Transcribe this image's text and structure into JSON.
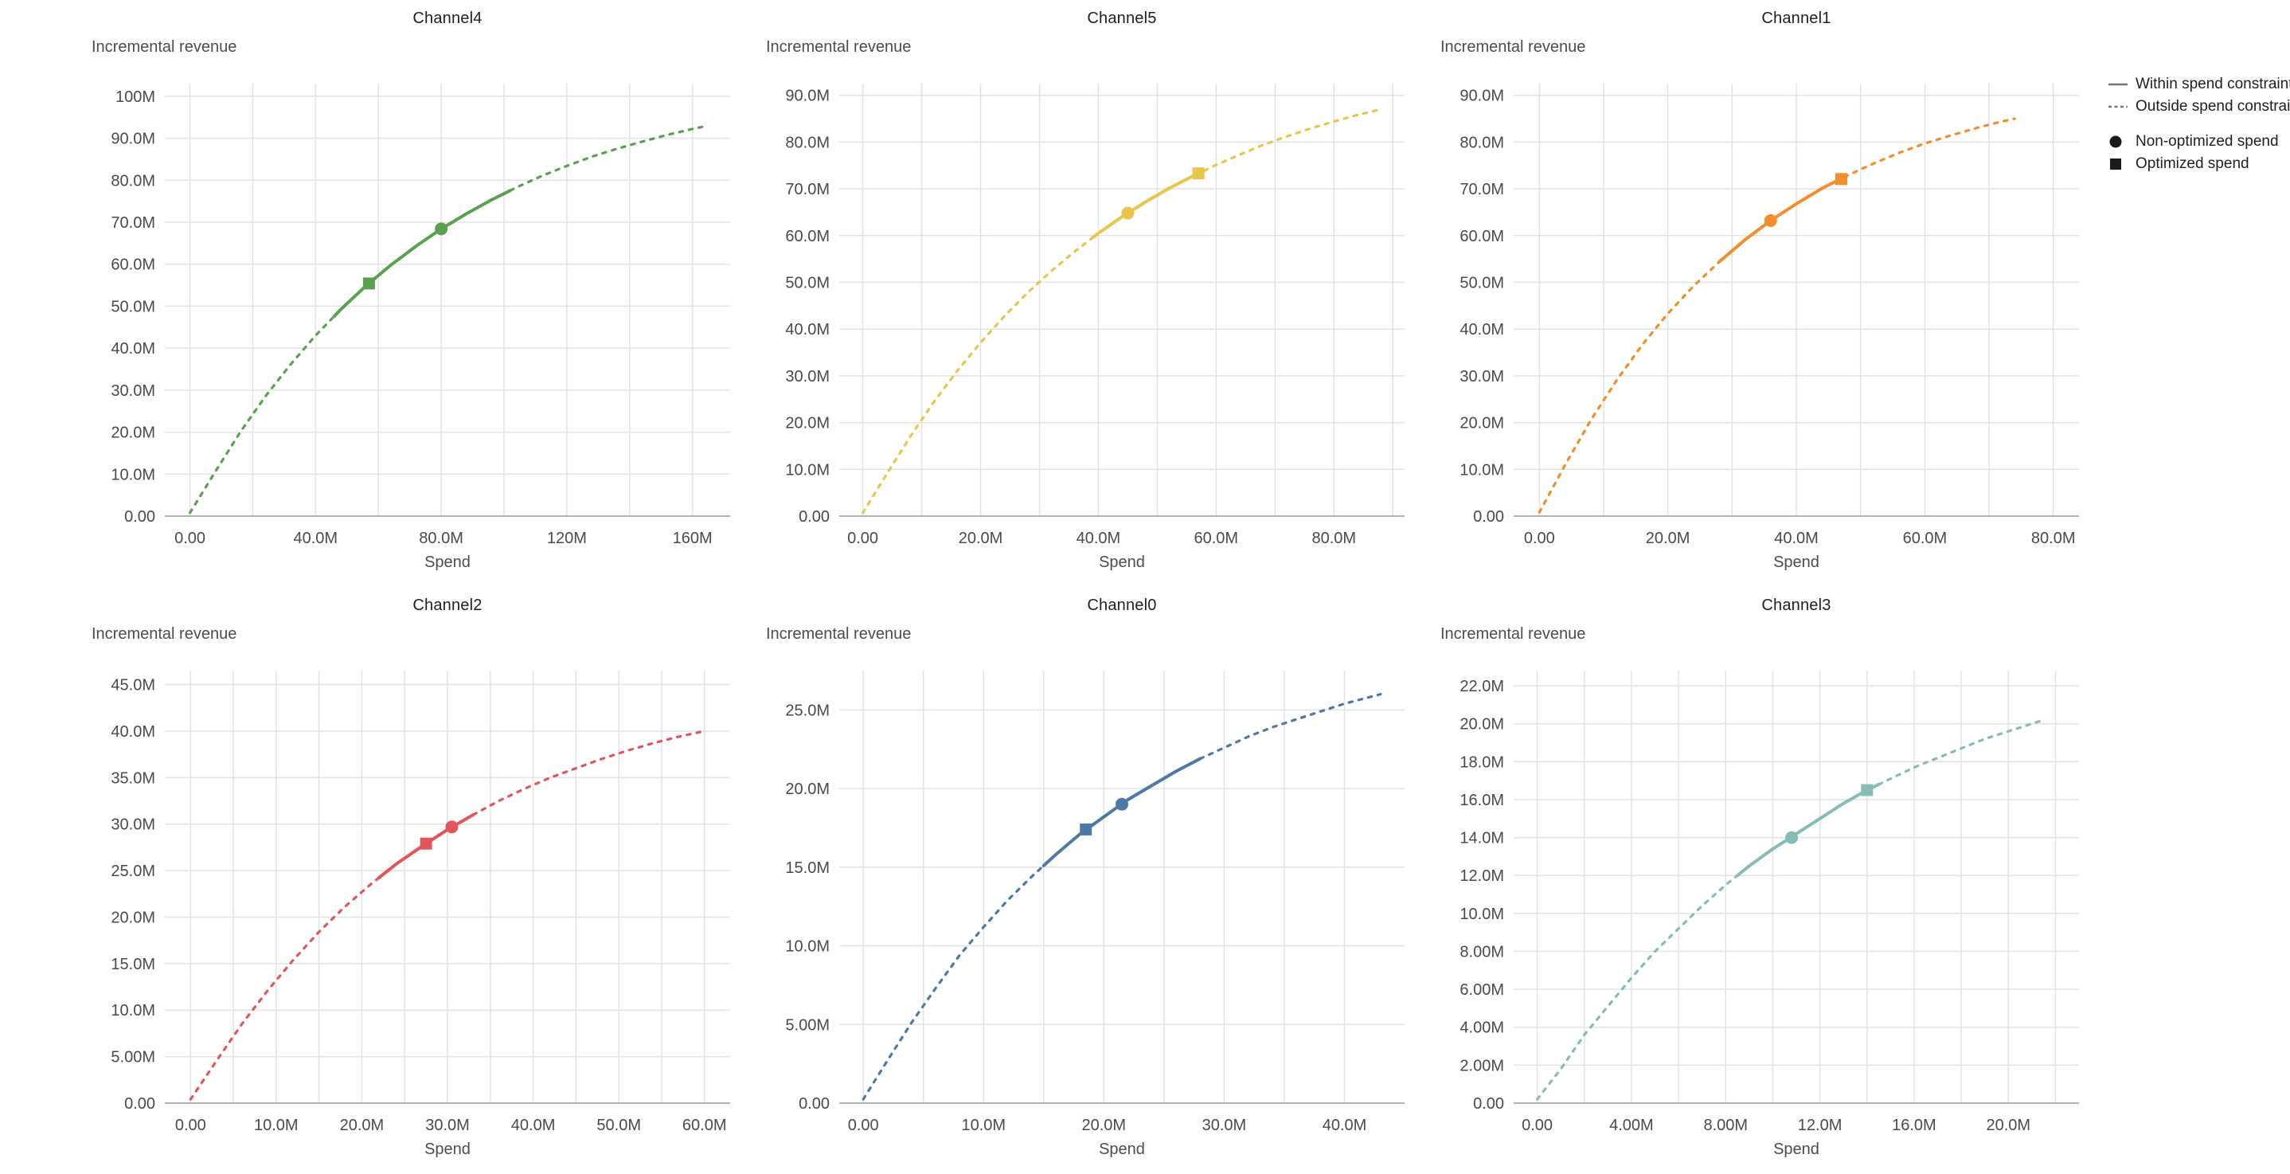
{
  "legend": {
    "items": [
      {
        "symbol": "solid-line",
        "label": "Within spend constraint"
      },
      {
        "symbol": "dashed-line",
        "label": "Outside spend constraint"
      },
      {
        "symbol": "circle",
        "label": "Non-optimized spend"
      },
      {
        "symbol": "square",
        "label": "Optimized spend"
      }
    ],
    "line_color": "#757575",
    "marker_color": "#1a1a1a"
  },
  "style": {
    "grid_color": "#e3e3e3",
    "axis_line_color": "#9e9e9e"
  },
  "chart_data": [
    {
      "type": "line",
      "title": "Channel4",
      "y_title": "Incremental revenue",
      "x_title": "Spend",
      "color": "#59A14F",
      "xlim": [
        -8,
        172
      ],
      "ylim": [
        0,
        103
      ],
      "x_ticks": [
        {
          "v": 0,
          "label": "0.00"
        },
        {
          "v": 40,
          "label": "40.0M"
        },
        {
          "v": 80,
          "label": "80.0M"
        },
        {
          "v": 120,
          "label": "120M"
        },
        {
          "v": 160,
          "label": "160M"
        }
      ],
      "x_minor": [
        20,
        60,
        100,
        140
      ],
      "y_ticks": [
        {
          "v": 0,
          "label": "0.00"
        },
        {
          "v": 10,
          "label": "10.0M"
        },
        {
          "v": 20,
          "label": "20.0M"
        },
        {
          "v": 30,
          "label": "30.0M"
        },
        {
          "v": 40,
          "label": "40.0M"
        },
        {
          "v": 50,
          "label": "50.0M"
        },
        {
          "v": 60,
          "label": "60.0M"
        },
        {
          "v": 70,
          "label": "70.0M"
        },
        {
          "v": 80,
          "label": "80.0M"
        },
        {
          "v": 90,
          "label": "90.0M"
        },
        {
          "v": 100,
          "label": "100M"
        }
      ],
      "solid_range": [
        46,
        102
      ],
      "curve": [
        [
          0,
          0.8
        ],
        [
          8,
          10.5
        ],
        [
          16,
          20.0
        ],
        [
          24,
          28.5
        ],
        [
          32,
          36.1
        ],
        [
          40,
          43.0
        ],
        [
          48,
          49.2
        ],
        [
          56,
          54.8
        ],
        [
          64,
          59.8
        ],
        [
          72,
          64.3
        ],
        [
          80,
          68.4
        ],
        [
          88,
          72.0
        ],
        [
          96,
          75.3
        ],
        [
          104,
          78.3
        ],
        [
          112,
          81.0
        ],
        [
          120,
          83.4
        ],
        [
          128,
          85.6
        ],
        [
          136,
          87.5
        ],
        [
          144,
          89.2
        ],
        [
          152,
          90.8
        ],
        [
          160,
          92.2
        ],
        [
          165,
          93.0
        ]
      ],
      "markers": {
        "non_optimized": [
          80,
          68.4
        ],
        "optimized": [
          57,
          55.4
        ]
      }
    },
    {
      "type": "line",
      "title": "Channel5",
      "y_title": "Incremental revenue",
      "x_title": "Spend",
      "color": "#E8C64A",
      "xlim": [
        -4,
        92
      ],
      "ylim": [
        0,
        92.5
      ],
      "x_ticks": [
        {
          "v": 0,
          "label": "0.00"
        },
        {
          "v": 20,
          "label": "20.0M"
        },
        {
          "v": 40,
          "label": "40.0M"
        },
        {
          "v": 60,
          "label": "60.0M"
        },
        {
          "v": 80,
          "label": "80.0M"
        }
      ],
      "x_minor": [
        10,
        30,
        50,
        70,
        90
      ],
      "y_ticks": [
        {
          "v": 0,
          "label": "0.00"
        },
        {
          "v": 10,
          "label": "10.0M"
        },
        {
          "v": 20,
          "label": "20.0M"
        },
        {
          "v": 30,
          "label": "30.0M"
        },
        {
          "v": 40,
          "label": "40.0M"
        },
        {
          "v": 50,
          "label": "50.0M"
        },
        {
          "v": 60,
          "label": "60.0M"
        },
        {
          "v": 70,
          "label": "70.0M"
        },
        {
          "v": 80,
          "label": "80.0M"
        },
        {
          "v": 90,
          "label": "90.0M"
        }
      ],
      "solid_range": [
        39,
        58
      ],
      "curve": [
        [
          0,
          0.7
        ],
        [
          4,
          8.9
        ],
        [
          8,
          16.9
        ],
        [
          12,
          24.3
        ],
        [
          16,
          31.0
        ],
        [
          20,
          37.1
        ],
        [
          24,
          42.7
        ],
        [
          28,
          47.8
        ],
        [
          32,
          52.4
        ],
        [
          36,
          56.6
        ],
        [
          40,
          60.5
        ],
        [
          44,
          64.0
        ],
        [
          48,
          67.2
        ],
        [
          52,
          70.1
        ],
        [
          56,
          72.7
        ],
        [
          60,
          75.1
        ],
        [
          64,
          77.3
        ],
        [
          68,
          79.4
        ],
        [
          72,
          81.2
        ],
        [
          76,
          82.9
        ],
        [
          80,
          84.4
        ],
        [
          84,
          85.8
        ],
        [
          88,
          87.0
        ]
      ],
      "markers": {
        "non_optimized": [
          45,
          64.8
        ],
        "optimized": [
          57,
          73.3
        ]
      }
    },
    {
      "type": "line",
      "title": "Channel1",
      "y_title": "Incremental revenue",
      "x_title": "Spend",
      "color": "#F28E2B",
      "xlim": [
        -4,
        84
      ],
      "ylim": [
        0,
        92.5
      ],
      "x_ticks": [
        {
          "v": 0,
          "label": "0.00"
        },
        {
          "v": 20,
          "label": "20.0M"
        },
        {
          "v": 40,
          "label": "40.0M"
        },
        {
          "v": 60,
          "label": "60.0M"
        },
        {
          "v": 80,
          "label": "80.0M"
        }
      ],
      "x_minor": [
        10,
        30,
        50,
        70
      ],
      "y_ticks": [
        {
          "v": 0,
          "label": "0.00"
        },
        {
          "v": 10,
          "label": "10.0M"
        },
        {
          "v": 20,
          "label": "20.0M"
        },
        {
          "v": 30,
          "label": "30.0M"
        },
        {
          "v": 40,
          "label": "40.0M"
        },
        {
          "v": 50,
          "label": "50.0M"
        },
        {
          "v": 60,
          "label": "60.0M"
        },
        {
          "v": 70,
          "label": "70.0M"
        },
        {
          "v": 80,
          "label": "80.0M"
        },
        {
          "v": 90,
          "label": "90.0M"
        }
      ],
      "solid_range": [
        28,
        47.5
      ],
      "curve": [
        [
          0,
          0.8
        ],
        [
          4,
          10.9
        ],
        [
          8,
          20.5
        ],
        [
          12,
          29.0
        ],
        [
          16,
          36.6
        ],
        [
          20,
          43.3
        ],
        [
          24,
          49.2
        ],
        [
          28,
          54.4
        ],
        [
          32,
          59.1
        ],
        [
          36,
          63.2
        ],
        [
          40,
          66.8
        ],
        [
          44,
          70.1
        ],
        [
          48,
          72.9
        ],
        [
          52,
          75.4
        ],
        [
          56,
          77.7
        ],
        [
          60,
          79.7
        ],
        [
          64,
          81.4
        ],
        [
          68,
          83.0
        ],
        [
          72,
          84.4
        ],
        [
          74,
          85.0
        ]
      ],
      "markers": {
        "non_optimized": [
          36,
          63.2
        ],
        "optimized": [
          47,
          72.1
        ]
      }
    },
    {
      "type": "line",
      "title": "Channel2",
      "y_title": "Incremental revenue",
      "x_title": "Spend",
      "color": "#E15759",
      "xlim": [
        -3,
        63
      ],
      "ylim": [
        0,
        46.5
      ],
      "x_ticks": [
        {
          "v": 0,
          "label": "0.00"
        },
        {
          "v": 10,
          "label": "10.0M"
        },
        {
          "v": 20,
          "label": "20.0M"
        },
        {
          "v": 30,
          "label": "30.0M"
        },
        {
          "v": 40,
          "label": "40.0M"
        },
        {
          "v": 50,
          "label": "50.0M"
        },
        {
          "v": 60,
          "label": "60.0M"
        }
      ],
      "x_minor": [
        5,
        15,
        25,
        35,
        45,
        55
      ],
      "y_ticks": [
        {
          "v": 0,
          "label": "0.00"
        },
        {
          "v": 5,
          "label": "5.00M"
        },
        {
          "v": 10,
          "label": "10.0M"
        },
        {
          "v": 15,
          "label": "15.0M"
        },
        {
          "v": 20,
          "label": "20.0M"
        },
        {
          "v": 25,
          "label": "25.0M"
        },
        {
          "v": 30,
          "label": "30.0M"
        },
        {
          "v": 35,
          "label": "35.0M"
        },
        {
          "v": 40,
          "label": "40.0M"
        },
        {
          "v": 45,
          "label": "45.0M"
        }
      ],
      "solid_range": [
        22,
        33
      ],
      "curve": [
        [
          0,
          0.4
        ],
        [
          3,
          4.5
        ],
        [
          6,
          8.5
        ],
        [
          9,
          12.1
        ],
        [
          12,
          15.4
        ],
        [
          15,
          18.4
        ],
        [
          18,
          21.1
        ],
        [
          21,
          23.5
        ],
        [
          24,
          25.7
        ],
        [
          27,
          27.6
        ],
        [
          30,
          29.4
        ],
        [
          33,
          31.0
        ],
        [
          36,
          32.5
        ],
        [
          39,
          33.8
        ],
        [
          42,
          35.0
        ],
        [
          45,
          36.0
        ],
        [
          48,
          37.0
        ],
        [
          51,
          37.9
        ],
        [
          54,
          38.7
        ],
        [
          57,
          39.4
        ],
        [
          60,
          40.0
        ]
      ],
      "markers": {
        "non_optimized": [
          30.5,
          29.7
        ],
        "optimized": [
          27.5,
          27.9
        ]
      }
    },
    {
      "type": "line",
      "title": "Channel0",
      "y_title": "Incremental revenue",
      "x_title": "Spend",
      "color": "#4E79A7",
      "xlim": [
        -2,
        45
      ],
      "ylim": [
        0,
        27.5
      ],
      "x_ticks": [
        {
          "v": 0,
          "label": "0.00"
        },
        {
          "v": 10,
          "label": "10.0M"
        },
        {
          "v": 20,
          "label": "20.0M"
        },
        {
          "v": 30,
          "label": "30.0M"
        },
        {
          "v": 40,
          "label": "40.0M"
        }
      ],
      "x_minor": [
        5,
        15,
        25,
        35
      ],
      "y_ticks": [
        {
          "v": 0,
          "label": "0.00"
        },
        {
          "v": 5,
          "label": "5.00M"
        },
        {
          "v": 10,
          "label": "10.0M"
        },
        {
          "v": 15,
          "label": "15.0M"
        },
        {
          "v": 20,
          "label": "20.0M"
        },
        {
          "v": 25,
          "label": "25.0M"
        }
      ],
      "solid_range": [
        15,
        28
      ],
      "curve": [
        [
          0,
          0.25
        ],
        [
          2,
          2.7
        ],
        [
          4,
          5.1
        ],
        [
          6,
          7.3
        ],
        [
          8,
          9.4
        ],
        [
          10,
          11.2
        ],
        [
          12,
          12.9
        ],
        [
          14,
          14.4
        ],
        [
          16,
          15.8
        ],
        [
          18,
          17.1
        ],
        [
          20,
          18.2
        ],
        [
          22,
          19.3
        ],
        [
          24,
          20.2
        ],
        [
          26,
          21.1
        ],
        [
          28,
          21.9
        ],
        [
          30,
          22.6
        ],
        [
          32,
          23.3
        ],
        [
          34,
          23.9
        ],
        [
          36,
          24.4
        ],
        [
          38,
          24.9
        ],
        [
          40,
          25.4
        ],
        [
          42,
          25.8
        ],
        [
          43,
          26.0
        ]
      ],
      "markers": {
        "non_optimized": [
          21.5,
          19.0
        ],
        "optimized": [
          18.5,
          17.4
        ]
      }
    },
    {
      "type": "line",
      "title": "Channel3",
      "y_title": "Incremental revenue",
      "x_title": "Spend",
      "color": "#86BCB6",
      "xlim": [
        -1,
        23
      ],
      "ylim": [
        0,
        22.8
      ],
      "x_ticks": [
        {
          "v": 0,
          "label": "0.00"
        },
        {
          "v": 4,
          "label": "4.00M"
        },
        {
          "v": 8,
          "label": "8.00M"
        },
        {
          "v": 12,
          "label": "12.0M"
        },
        {
          "v": 16,
          "label": "16.0M"
        },
        {
          "v": 20,
          "label": "20.0M"
        }
      ],
      "x_minor": [
        2,
        6,
        10,
        14,
        18,
        22
      ],
      "y_ticks": [
        {
          "v": 0,
          "label": "0.00"
        },
        {
          "v": 2,
          "label": "2.00M"
        },
        {
          "v": 4,
          "label": "4.00M"
        },
        {
          "v": 6,
          "label": "6.00M"
        },
        {
          "v": 8,
          "label": "8.00M"
        },
        {
          "v": 10,
          "label": "10.0M"
        },
        {
          "v": 12,
          "label": "12.0M"
        },
        {
          "v": 14,
          "label": "14.0M"
        },
        {
          "v": 16,
          "label": "16.0M"
        },
        {
          "v": 18,
          "label": "18.0M"
        },
        {
          "v": 20,
          "label": "20.0M"
        },
        {
          "v": 22,
          "label": "22.0M"
        }
      ],
      "solid_range": [
        8.5,
        14.5
      ],
      "curve": [
        [
          0,
          0.2
        ],
        [
          1,
          1.8
        ],
        [
          2,
          3.6
        ],
        [
          3,
          5.1
        ],
        [
          4,
          6.6
        ],
        [
          5,
          8.0
        ],
        [
          6,
          9.2
        ],
        [
          7,
          10.4
        ],
        [
          8,
          11.5
        ],
        [
          9,
          12.5
        ],
        [
          10,
          13.4
        ],
        [
          11,
          14.2
        ],
        [
          12,
          15.0
        ],
        [
          13,
          15.8
        ],
        [
          14,
          16.5
        ],
        [
          15,
          17.1
        ],
        [
          16,
          17.7
        ],
        [
          17,
          18.2
        ],
        [
          18,
          18.7
        ],
        [
          19,
          19.2
        ],
        [
          20,
          19.6
        ],
        [
          21,
          20.0
        ],
        [
          21.5,
          20.2
        ]
      ],
      "markers": {
        "non_optimized": [
          10.8,
          14.0
        ],
        "optimized": [
          14,
          16.5
        ]
      }
    }
  ]
}
